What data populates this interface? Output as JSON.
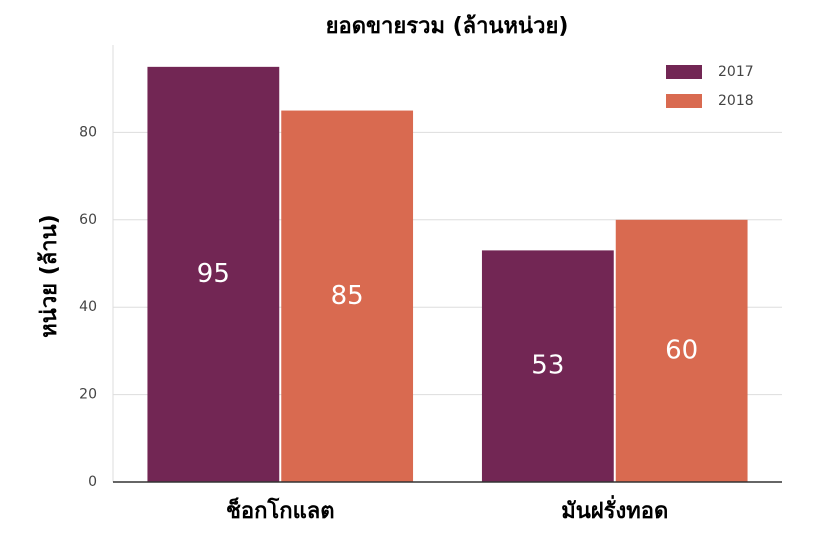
{
  "chart_data": {
    "type": "bar",
    "title": "ยอดขายรวม (ล้านหน่วย)",
    "y_label": "หน่วย (ล้าน)",
    "categories": [
      "ช็อกโกแลต",
      "มันฝรั่งทอด"
    ],
    "series": [
      {
        "name": "2017",
        "color": "#722654",
        "values": [
          95,
          53
        ]
      },
      {
        "name": "2018",
        "color": "#d96a50",
        "values": [
          85,
          60
        ]
      }
    ],
    "ylim": [
      0,
      100
    ],
    "yticks": [
      0,
      20,
      40,
      60,
      80
    ],
    "grid": true,
    "legend": "upper right"
  }
}
